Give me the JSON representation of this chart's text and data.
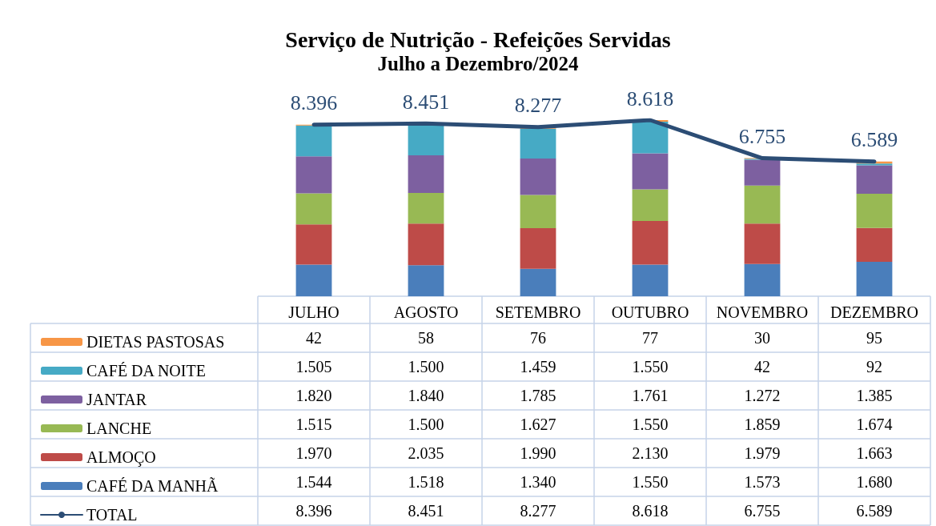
{
  "chart_data": {
    "type": "bar",
    "title": "Serviço de Nutrição - Refeições Servidas",
    "subtitle": "Julho a Dezembro/2024",
    "stacked": true,
    "legend": "left",
    "categories": [
      "JULHO",
      "AGOSTO",
      "SETEMBRO",
      "OUTUBRO",
      "NOVEMBRO",
      "DEZEMBRO"
    ],
    "series": [
      {
        "name": "CAFÉ DA MANHÃ",
        "color": "#4a7ebb",
        "values": [
          1544,
          1518,
          1340,
          1550,
          1573,
          1680
        ],
        "value_labels": [
          "1.544",
          "1.518",
          "1.340",
          "1.550",
          "1.573",
          "1.680"
        ]
      },
      {
        "name": "ALMOÇO",
        "color": "#be4b48",
        "values": [
          1970,
          2035,
          1990,
          2130,
          1979,
          1663
        ],
        "value_labels": [
          "1.970",
          "2.035",
          "1.990",
          "2.130",
          "1.979",
          "1.663"
        ]
      },
      {
        "name": "LANCHE",
        "color": "#98b954",
        "values": [
          1515,
          1500,
          1627,
          1550,
          1859,
          1674
        ],
        "value_labels": [
          "1.515",
          "1.500",
          "1.627",
          "1.550",
          "1.859",
          "1.674"
        ]
      },
      {
        "name": "JANTAR",
        "color": "#7d60a0",
        "values": [
          1820,
          1840,
          1785,
          1761,
          1272,
          1385
        ],
        "value_labels": [
          "1.820",
          "1.840",
          "1.785",
          "1.761",
          "1.272",
          "1.385"
        ]
      },
      {
        "name": "CAFÉ DA NOITE",
        "color": "#46aac5",
        "values": [
          1505,
          1500,
          1459,
          1550,
          42,
          92
        ],
        "value_labels": [
          "1.505",
          "1.500",
          "1.459",
          "1.550",
          "42",
          "92"
        ]
      },
      {
        "name": "DIETAS PASTOSAS",
        "color": "#f79646",
        "values": [
          42,
          58,
          76,
          77,
          30,
          95
        ],
        "value_labels": [
          "42",
          "58",
          "76",
          "77",
          "30",
          "95"
        ]
      },
      {
        "name": "TOTAL",
        "type": "line",
        "color": "#2c4d75",
        "values": [
          8396,
          8451,
          8277,
          8618,
          6755,
          6589
        ],
        "value_labels": [
          "8.396",
          "8.451",
          "8.277",
          "8.618",
          "6.755",
          "6.589"
        ]
      }
    ]
  }
}
